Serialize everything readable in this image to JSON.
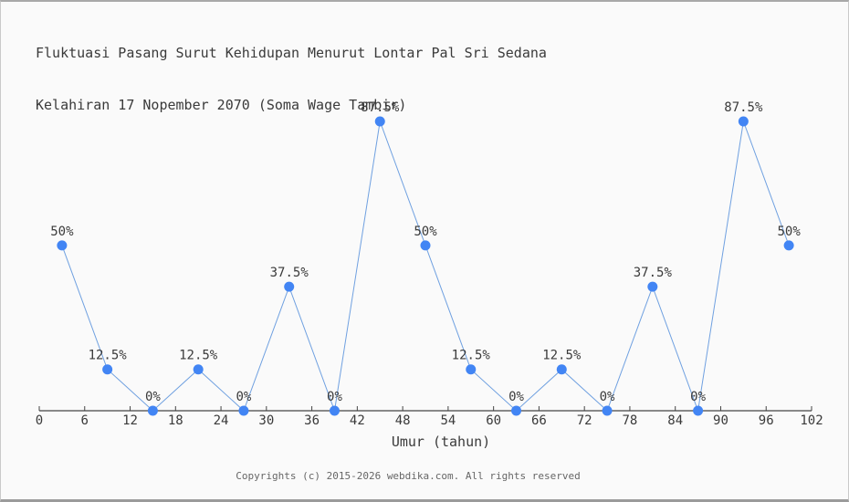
{
  "page": {
    "background_color": "#fafafa",
    "border_color": "#a8a8a8"
  },
  "footer": {
    "copyright": "Copyrights (c) 2015-2026 webdika.com. All rights reserved"
  },
  "chart_data": {
    "type": "line",
    "title": "Fluktuasi Pasang Surut Kehidupan Menurut Lontar Pal Sri Sedana Kelahiran 17 Nopember 2070 (Soma Wage Tambir)",
    "title_lines": [
      "Fluktuasi Pasang Surut Kehidupan Menurut Lontar Pal Sri Sedana",
      "Kelahiran 17 Nopember 2070 (Soma Wage Tambir)"
    ],
    "xlabel": "Umur (tahun)",
    "ylabel": "",
    "x": [
      3,
      9,
      15,
      21,
      27,
      33,
      39,
      45,
      51,
      57,
      63,
      69,
      75,
      81,
      87,
      93,
      99
    ],
    "values": [
      50,
      12.5,
      0,
      12.5,
      0,
      37.5,
      0,
      87.5,
      50,
      12.5,
      0,
      12.5,
      0,
      37.5,
      0,
      87.5,
      50
    ],
    "point_labels": [
      "50%",
      "12.5%",
      "0%",
      "12.5%",
      "0%",
      "37.5%",
      "0%",
      "87.5%",
      "50%",
      "12.5%",
      "0%",
      "12.5%",
      "0%",
      "37.5%",
      "0%",
      "87.5%",
      "50%"
    ],
    "x_ticks": [
      0,
      6,
      12,
      18,
      24,
      30,
      36,
      42,
      48,
      54,
      60,
      66,
      72,
      78,
      84,
      90,
      96,
      102
    ],
    "xlim": [
      0,
      102
    ],
    "ylim": [
      0,
      100
    ],
    "grid": false,
    "legend": "none",
    "colors": {
      "marker": "#4285f4",
      "line": "#6fa0e0",
      "axis": "#444444",
      "text": "#3a3a3a",
      "footer_text": "#666666"
    }
  }
}
